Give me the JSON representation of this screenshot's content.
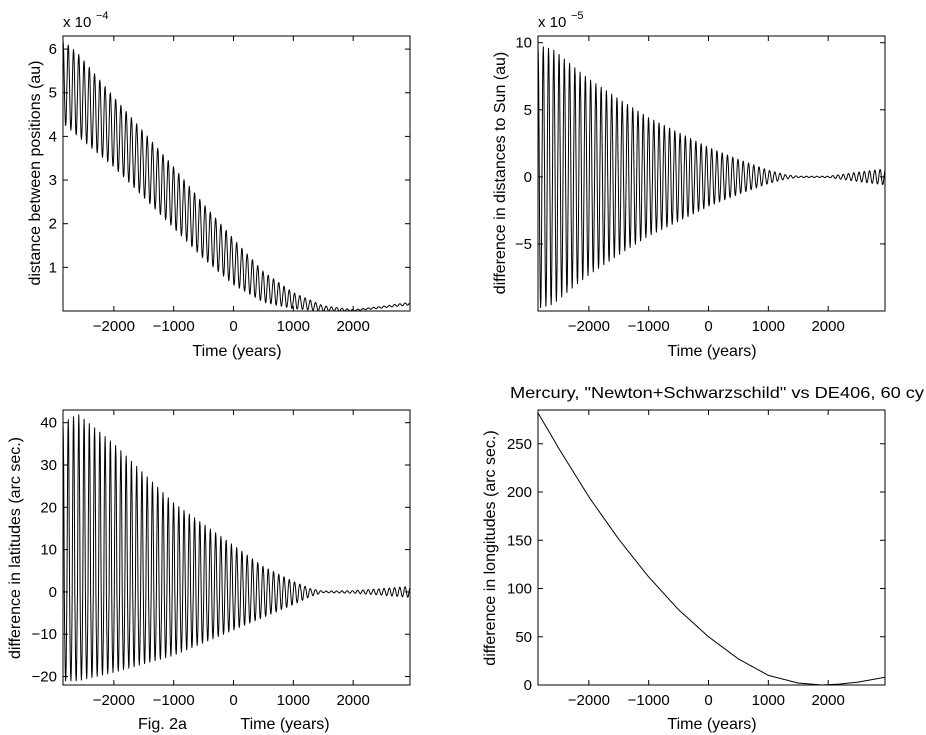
{
  "caption": "Fig. 2a",
  "chart_data": [
    {
      "type": "line",
      "id": "p1",
      "title": "",
      "xlabel": "Time (years)",
      "ylabel": "distance between positions (au)",
      "exponent_label": "x 10",
      "exponent_power": "−4",
      "xlim": [
        -2850,
        2950
      ],
      "ylim": [
        0,
        6.3
      ],
      "xticks": [
        -2000,
        -1000,
        0,
        1000,
        2000
      ],
      "xtick_labels": [
        "−2000",
        "−1000",
        "0",
        "1000",
        "2000"
      ],
      "yticks": [
        1,
        2,
        3,
        4,
        5,
        6
      ],
      "ytick_labels": [
        "1",
        "2",
        "3",
        "4",
        "5",
        "6"
      ],
      "series": [
        {
          "name": "distance between positions",
          "model": "osc_abs",
          "x_start": -2850,
          "x_end": 2950,
          "envelope_x": [
            -2850,
            -2600,
            -2000,
            -1500,
            -1000,
            -500,
            0,
            500,
            1000,
            1500,
            2000,
            2500,
            2950
          ],
          "upper": [
            6.2,
            5.9,
            4.9,
            4.1,
            3.3,
            2.45,
            1.65,
            0.9,
            0.42,
            0.12,
            0.03,
            0.11,
            0.2
          ],
          "lower": [
            4.3,
            4.0,
            3.3,
            2.6,
            1.9,
            1.2,
            0.6,
            0.2,
            0.05,
            0.0,
            0.0,
            0.07,
            0.14
          ]
        }
      ]
    },
    {
      "type": "line",
      "id": "p2",
      "title": "",
      "xlabel": "Time (years)",
      "ylabel": "difference in distances to Sun (au)",
      "exponent_label": "x 10",
      "exponent_power": "−5",
      "xlim": [
        -2850,
        2950
      ],
      "ylim": [
        -10,
        10.5
      ],
      "xticks": [
        -2000,
        -1000,
        0,
        1000,
        2000
      ],
      "xtick_labels": [
        "−2000",
        "−1000",
        "0",
        "1000",
        "2000"
      ],
      "yticks": [
        -5,
        0,
        5,
        10
      ],
      "ytick_labels": [
        "−5",
        "0",
        "5",
        "10"
      ],
      "series": [
        {
          "name": "difference in distances to Sun",
          "model": "osc_sym",
          "x_start": -2850,
          "x_end": 2950,
          "envelope_x": [
            -2850,
            -2600,
            -2200,
            -2000,
            -1500,
            -1000,
            -500,
            0,
            500,
            1000,
            1300,
            1500,
            2000,
            2500,
            2950
          ],
          "amplitude": [
            9.8,
            9.5,
            8.0,
            7.3,
            5.8,
            4.4,
            3.3,
            2.2,
            1.3,
            0.5,
            0.15,
            0.05,
            0.05,
            0.35,
            0.6
          ]
        }
      ]
    },
    {
      "type": "line",
      "id": "p3",
      "title": "",
      "xlabel": "Time (years)",
      "ylabel": "difference in latitudes (arc sec.)",
      "exponent_label": "",
      "exponent_power": "",
      "xlim": [
        -2850,
        2950
      ],
      "ylim": [
        -22,
        43
      ],
      "xticks": [
        -2000,
        -1000,
        0,
        1000,
        2000
      ],
      "xtick_labels": [
        "−2000",
        "−1000",
        "0",
        "1000",
        "2000"
      ],
      "yticks": [
        -20,
        -10,
        0,
        10,
        20,
        30,
        40
      ],
      "ytick_labels": [
        "−20",
        "−10",
        "0",
        "10",
        "20",
        "30",
        "40"
      ],
      "series": [
        {
          "name": "difference in latitudes",
          "model": "osc_asym",
          "x_start": -2850,
          "x_end": 2950,
          "envelope_x": [
            -2850,
            -2600,
            -2000,
            -1500,
            -1000,
            -500,
            0,
            500,
            1000,
            1300,
            1500,
            2000,
            2500,
            2950
          ],
          "upper": [
            40,
            42,
            35,
            28,
            21,
            16,
            11,
            6,
            2.5,
            0.7,
            0.2,
            0.3,
            0.8,
            1.3
          ],
          "lower": [
            -21,
            -21,
            -19,
            -17,
            -15,
            -12,
            -9,
            -6,
            -3,
            -1,
            -0.2,
            -0.3,
            -0.8,
            -1.3
          ]
        }
      ]
    },
    {
      "type": "line",
      "id": "p4",
      "title": "Mercury, \"Newton+Schwarzschild\" vs DE406, 60 cy",
      "xlabel": "Time (years)",
      "ylabel": "difference in longitudes (arc sec.)",
      "exponent_label": "",
      "exponent_power": "",
      "xlim": [
        -2850,
        2950
      ],
      "ylim": [
        0,
        285
      ],
      "xticks": [
        -2000,
        -1000,
        0,
        1000,
        2000
      ],
      "xtick_labels": [
        "−2000",
        "−1000",
        "0",
        "1000",
        "2000"
      ],
      "yticks": [
        0,
        50,
        100,
        150,
        200,
        250
      ],
      "ytick_labels": [
        "0",
        "50",
        "100",
        "150",
        "200",
        "250"
      ],
      "series": [
        {
          "name": "difference in longitudes",
          "model": "smooth",
          "x": [
            -2850,
            -2500,
            -2000,
            -1500,
            -1000,
            -500,
            0,
            500,
            1000,
            1500,
            1900,
            2200,
            2500,
            2950
          ],
          "y": [
            282,
            245,
            195,
            151,
            112,
            78,
            50,
            27,
            10,
            2,
            0,
            1,
            3,
            8
          ]
        }
      ]
    }
  ]
}
